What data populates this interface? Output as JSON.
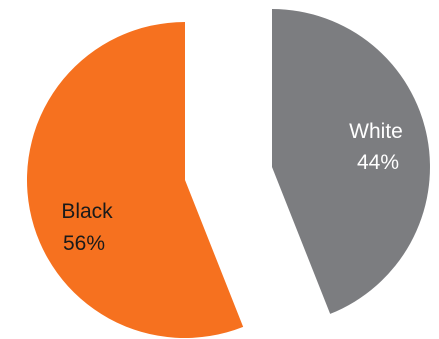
{
  "chart_data": {
    "type": "pie",
    "exploded": true,
    "slices": [
      {
        "label": "White",
        "value": 44,
        "value_label": "44%",
        "color": "#7c7d80",
        "label_color": "#ffffff"
      },
      {
        "label": "Black",
        "value": 56,
        "value_label": "56%",
        "color": "#f6711f",
        "label_color": "#1a1a1a"
      }
    ]
  }
}
